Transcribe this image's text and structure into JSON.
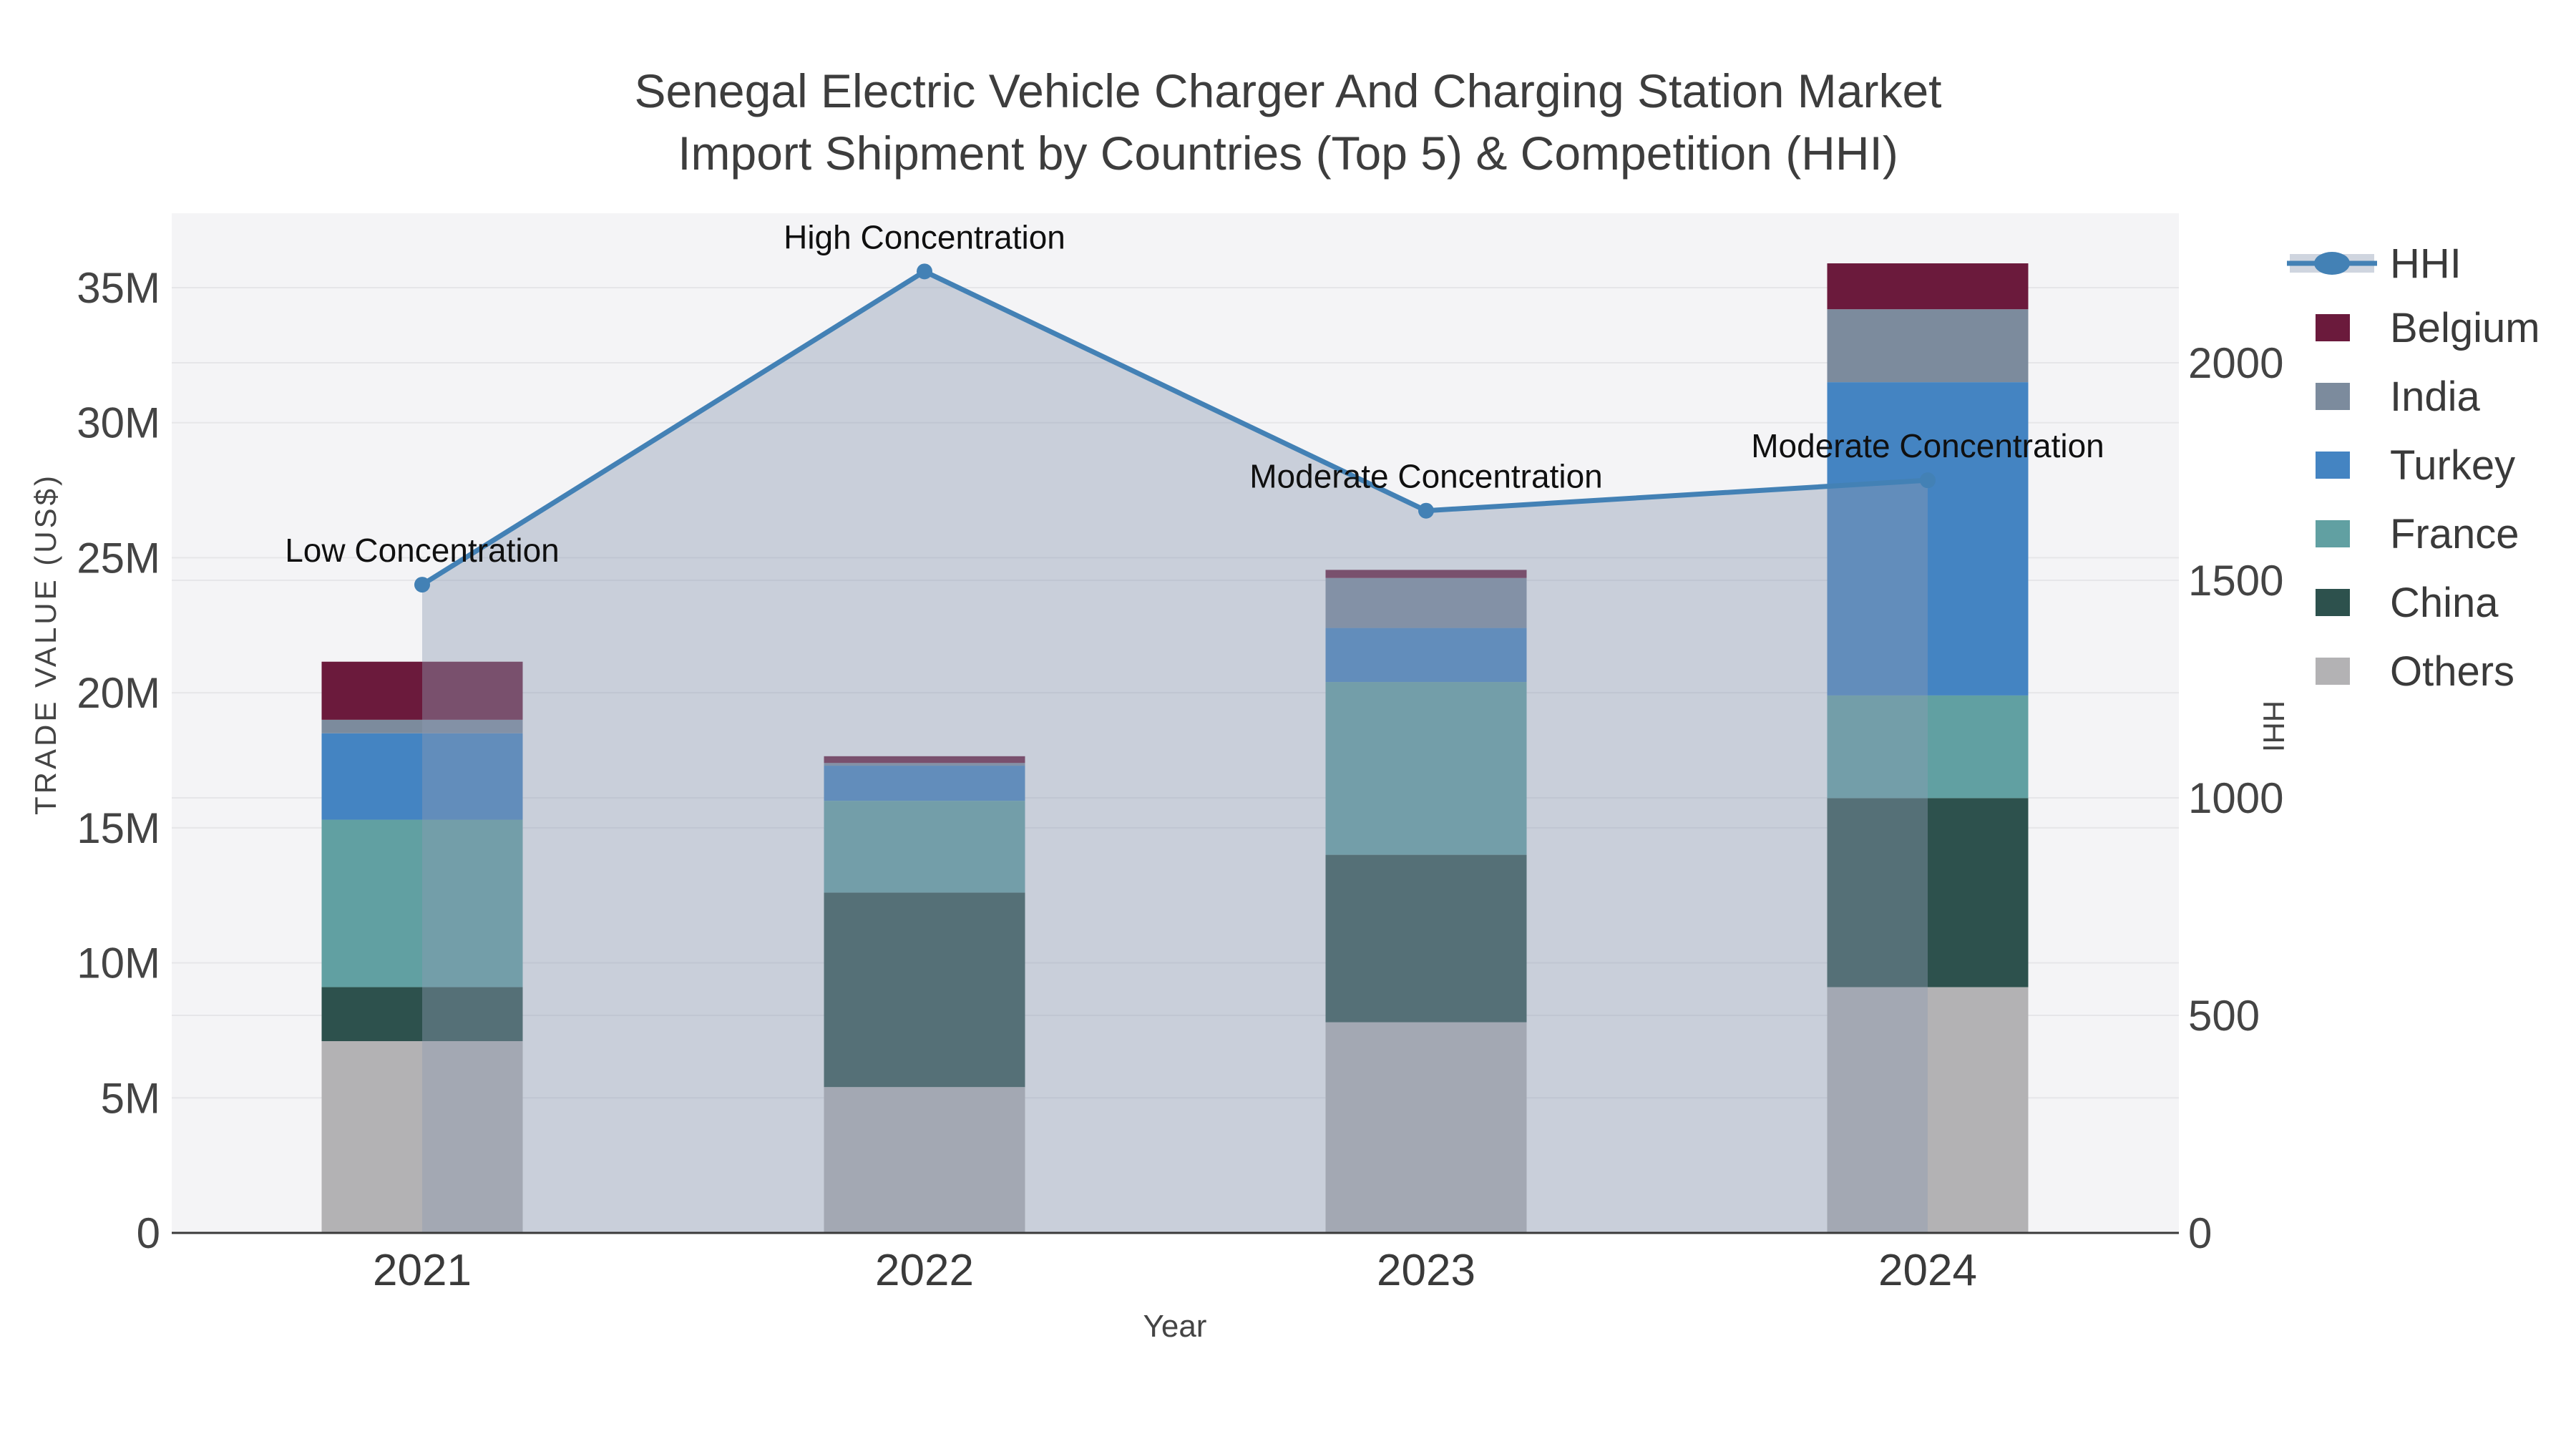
{
  "title": {
    "line1": "Senegal Electric Vehicle Charger And Charging Station Market",
    "line2": "Import Shipment by Countries (Top 5) & Competition (HHI)"
  },
  "axes": {
    "left": {
      "title": "TRADE VALUE (US$)",
      "tick_values": [
        0,
        5,
        10,
        15,
        20,
        25,
        30,
        35
      ],
      "tick_labels": [
        "0",
        "5M",
        "10M",
        "15M",
        "20M",
        "25M",
        "30M",
        "35M"
      ]
    },
    "right": {
      "title": "HHI",
      "tick_values": [
        0,
        500,
        1000,
        1500,
        2000
      ],
      "tick_labels": [
        "0",
        "500",
        "1000",
        "1500",
        "2000"
      ]
    },
    "x": {
      "title": "Year",
      "categories": [
        "2021",
        "2022",
        "2023",
        "2024"
      ]
    }
  },
  "legend": {
    "items": [
      {
        "label": "HHI",
        "type": "line",
        "color": "#4381b5"
      },
      {
        "label": "Belgium",
        "type": "swatch",
        "color": "#6b1a3c"
      },
      {
        "label": "India",
        "type": "swatch",
        "color": "#7c8b9d"
      },
      {
        "label": "Turkey",
        "type": "swatch",
        "color": "#4484c2"
      },
      {
        "label": "France",
        "type": "swatch",
        "color": "#61a0a2"
      },
      {
        "label": "China",
        "type": "swatch",
        "color": "#2d514d"
      },
      {
        "label": "Others",
        "type": "swatch",
        "color": "#b3b2b4"
      }
    ]
  },
  "colors": {
    "plot_bg": "#f4f4f6",
    "gridline": "#e6e6e9",
    "axis_line": "#3a3a3a",
    "hhi_line": "#4381b5",
    "hhi_area_fill": "rgba(141,155,179,0.42)"
  },
  "chart_data": {
    "type": "stacked-bar+line",
    "categories": [
      "2021",
      "2022",
      "2023",
      "2024"
    ],
    "bar_value_unit": "US$ millions",
    "series": [
      {
        "name": "Others",
        "color": "#b3b2b4",
        "values": [
          7.1,
          5.4,
          7.8,
          9.1
        ]
      },
      {
        "name": "China",
        "color": "#2d514d",
        "values": [
          2.0,
          7.2,
          6.2,
          7.0
        ]
      },
      {
        "name": "France",
        "color": "#61a0a2",
        "values": [
          6.2,
          3.4,
          6.4,
          3.8
        ]
      },
      {
        "name": "Turkey",
        "color": "#4484c2",
        "values": [
          3.2,
          1.3,
          2.0,
          11.6
        ]
      },
      {
        "name": "India",
        "color": "#7c8b9d",
        "values": [
          0.5,
          0.1,
          1.85,
          2.7
        ]
      },
      {
        "name": "Belgium",
        "color": "#6b1a3c",
        "values": [
          2.15,
          0.25,
          0.3,
          1.7
        ]
      }
    ],
    "bar_totals": [
      21.15,
      17.65,
      24.55,
      35.9
    ],
    "line": {
      "name": "HHI",
      "values": [
        1490,
        2210,
        1660,
        1730
      ],
      "annotations": [
        "Low Concentration",
        "High Concentration",
        "Moderate Concentration",
        "Moderate Concentration"
      ]
    },
    "ylim_left": [
      0,
      37.8
    ],
    "ylim_right": [
      0,
      2345
    ],
    "xlabel": "Year",
    "ylabel_left": "TRADE VALUE (US$)",
    "ylabel_right": "HHI",
    "legend_position": "top-right-outside",
    "grid": true
  }
}
